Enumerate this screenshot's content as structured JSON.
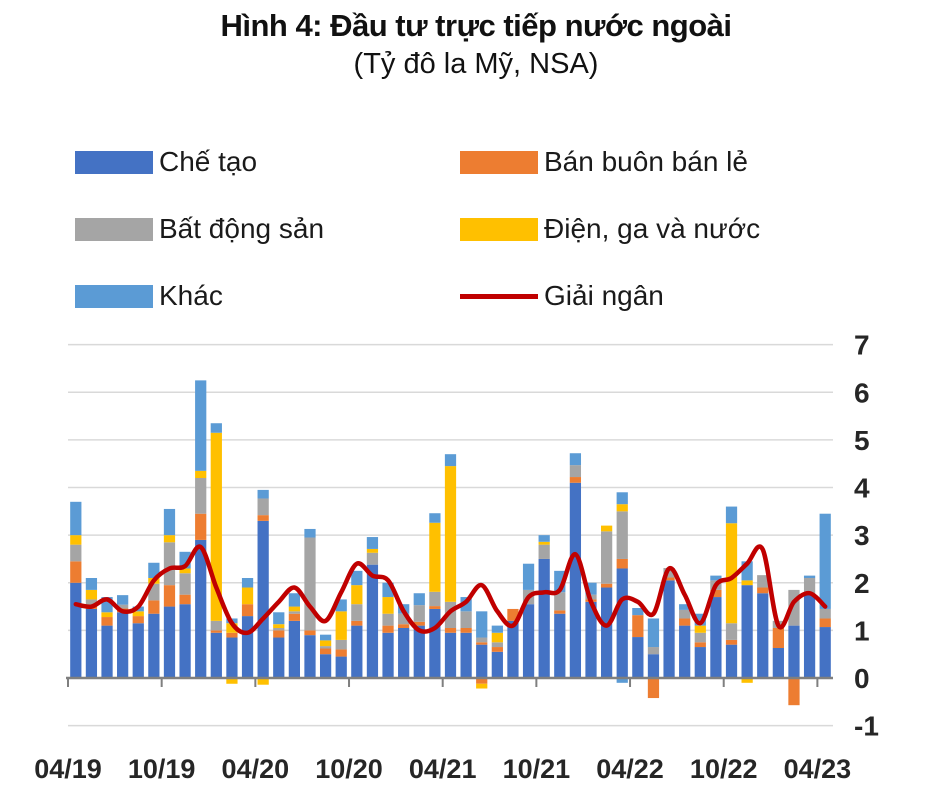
{
  "header": {
    "title": "Hình 4: Đầu tư trực tiếp nước ngoài",
    "subtitle": "(Tỷ đô la Mỹ, NSA)"
  },
  "legend": {
    "items": [
      {
        "label": "Chế tạo",
        "color": "#4472C4",
        "type": "box"
      },
      {
        "label": "Bán buôn bán lẻ",
        "color": "#ED7D31",
        "type": "box"
      },
      {
        "label": "Bất động sản",
        "color": "#A5A5A5",
        "type": "box"
      },
      {
        "label": "Điện, ga và nước",
        "color": "#FFC000",
        "type": "box"
      },
      {
        "label": "Khác",
        "color": "#5B9BD5",
        "type": "box"
      },
      {
        "label": "Giải ngân",
        "color": "#C00000",
        "type": "line"
      }
    ]
  },
  "chart_data": {
    "type": "bar",
    "subtype": "stacked-bar-with-line",
    "title": "Hình 4: Đầu tư trực tiếp nước ngoài",
    "unit_label": "(Tỷ đô la Mỹ, NSA)",
    "grid": true,
    "legend_position": "top",
    "categories": [
      "04/19",
      "05/19",
      "06/19",
      "07/19",
      "08/19",
      "09/19",
      "10/19",
      "11/19",
      "12/19",
      "01/20",
      "02/20",
      "03/20",
      "04/20",
      "05/20",
      "06/20",
      "07/20",
      "08/20",
      "09/20",
      "10/20",
      "11/20",
      "12/20",
      "01/21",
      "02/21",
      "03/21",
      "04/21",
      "05/21",
      "06/21",
      "07/21",
      "08/21",
      "09/21",
      "10/21",
      "11/21",
      "12/21",
      "01/22",
      "02/22",
      "03/22",
      "04/22",
      "05/22",
      "06/22",
      "07/22",
      "08/22",
      "09/22",
      "10/22",
      "11/22",
      "12/22",
      "01/23",
      "02/23",
      "03/23",
      "04/23"
    ],
    "series": [
      {
        "name": "Chế tạo",
        "color": "#4472C4",
        "values": [
          2.0,
          1.45,
          1.1,
          1.38,
          1.15,
          1.35,
          1.5,
          1.55,
          2.9,
          0.95,
          0.85,
          1.3,
          3.3,
          0.85,
          1.2,
          0.9,
          0.5,
          0.45,
          1.1,
          2.38,
          0.95,
          1.05,
          1.1,
          1.45,
          0.95,
          0.95,
          0.7,
          0.55,
          1.2,
          1.55,
          2.5,
          1.35,
          4.1,
          1.6,
          1.9,
          2.3,
          0.86,
          0.5,
          2.05,
          1.1,
          0.65,
          1.7,
          0.7,
          1.95,
          1.78,
          0.63,
          1.1,
          1.75,
          1.07
        ]
      },
      {
        "name": "Bán buôn bán lẻ",
        "color": "#ED7D31",
        "values": [
          0.45,
          0.08,
          0.18,
          0.08,
          0.15,
          0.28,
          0.45,
          0.2,
          0.55,
          0.05,
          0.1,
          0.25,
          0.12,
          0.15,
          0.15,
          0.1,
          0.12,
          0.15,
          0.1,
          0.0,
          0.15,
          0.08,
          0.08,
          0.06,
          0.1,
          0.1,
          0.05,
          0.1,
          0.25,
          0.0,
          0.0,
          0.07,
          0.12,
          0.05,
          0.08,
          0.2,
          0.46,
          0.0,
          0.06,
          0.15,
          0.1,
          0.15,
          0.1,
          0.0,
          0.12,
          0.42,
          0.0,
          0.0,
          0.18
        ]
      },
      {
        "name": "Bất động sản",
        "color": "#A5A5A5",
        "values": [
          0.35,
          0.12,
          0.0,
          0.08,
          0.0,
          0.35,
          0.9,
          0.45,
          0.75,
          0.2,
          0.0,
          0.0,
          0.35,
          0.05,
          0.05,
          1.95,
          0.05,
          0.2,
          0.35,
          0.25,
          0.25,
          0.22,
          0.35,
          0.3,
          0.55,
          0.35,
          0.1,
          0.1,
          0.0,
          0.3,
          0.3,
          0.38,
          0.25,
          0.1,
          1.1,
          1.0,
          0.0,
          0.15,
          0.2,
          0.18,
          0.2,
          0.2,
          0.35,
          0.0,
          0.26,
          0.15,
          0.75,
          0.35,
          0.2
        ]
      },
      {
        "name": "Điện, ga và nước",
        "color": "#FFC000",
        "values": [
          0.2,
          0.2,
          0.1,
          0.0,
          0.1,
          0.12,
          0.15,
          0.1,
          0.15,
          3.95,
          0.2,
          0.35,
          0.0,
          0.08,
          0.1,
          0.0,
          0.12,
          0.6,
          0.4,
          0.08,
          0.35,
          0.0,
          0.0,
          1.45,
          2.85,
          0.0,
          0.0,
          0.2,
          0.0,
          0.0,
          0.06,
          0.0,
          0.0,
          0.0,
          0.12,
          0.15,
          0.0,
          0.0,
          0.0,
          0.0,
          0.15,
          0.0,
          2.1,
          0.1,
          0.0,
          0.0,
          0.0,
          0.0,
          0.0
        ]
      },
      {
        "name": "Khác",
        "color": "#5B9BD5",
        "values": [
          0.7,
          0.25,
          0.32,
          0.2,
          0.1,
          0.32,
          0.55,
          0.35,
          1.9,
          0.2,
          0.1,
          0.2,
          0.18,
          0.25,
          0.28,
          0.18,
          0.12,
          0.25,
          0.3,
          0.25,
          0.3,
          0.2,
          0.25,
          0.2,
          0.25,
          0.3,
          0.55,
          0.15,
          0.0,
          0.55,
          0.14,
          0.45,
          0.25,
          0.25,
          0.0,
          0.25,
          0.15,
          0.6,
          0.0,
          0.12,
          0.25,
          0.1,
          0.35,
          0.4,
          0.0,
          0.0,
          0.0,
          0.05,
          2.0
        ]
      }
    ],
    "negative_values": [
      {
        "category": "02/20",
        "series": "Điện, ga và nước",
        "value": -0.1
      },
      {
        "category": "04/20",
        "series": "Điện, ga và nước",
        "value": -0.12
      },
      {
        "category": "06/21",
        "series": "Bán buôn bán lẻ",
        "value": -0.1
      },
      {
        "category": "06/21",
        "series": "Điện, ga và nước",
        "value": -0.1
      },
      {
        "category": "03/22",
        "series": "Khác",
        "value": -0.08
      },
      {
        "category": "05/22",
        "series": "Bán buôn bán lẻ",
        "value": -0.4
      },
      {
        "category": "11/22",
        "series": "Điện, ga và nước",
        "value": -0.08
      },
      {
        "category": "02/23",
        "series": "Bán buôn bán lẻ",
        "value": -0.55
      }
    ],
    "line_series": {
      "name": "Giải ngân",
      "color": "#C00000",
      "values": [
        1.55,
        1.5,
        1.65,
        1.4,
        1.5,
        2.05,
        2.3,
        2.35,
        2.75,
        1.9,
        1.15,
        0.95,
        1.25,
        1.6,
        1.9,
        1.5,
        1.2,
        1.8,
        2.4,
        2.15,
        2.05,
        1.4,
        1.0,
        1.05,
        1.4,
        1.6,
        1.95,
        1.4,
        1.1,
        1.7,
        1.8,
        1.85,
        2.6,
        1.6,
        1.1,
        1.65,
        1.6,
        1.35,
        2.3,
        1.75,
        1.15,
        1.95,
        2.1,
        2.4,
        2.7,
        1.1,
        1.6,
        1.78,
        1.5
      ]
    },
    "y_axis": {
      "min": -1,
      "max": 7,
      "ticks": [
        7,
        6,
        5,
        4,
        3,
        2,
        1,
        0,
        -1
      ],
      "side": "right"
    },
    "x_tick_labels": [
      "04/19",
      "10/19",
      "04/20",
      "10/20",
      "04/21",
      "10/21",
      "04/22",
      "10/22",
      "04/23"
    ],
    "axis_color": "#7f7f7f",
    "gridline_color": "#d9d9d9",
    "label_color": "#262626"
  }
}
